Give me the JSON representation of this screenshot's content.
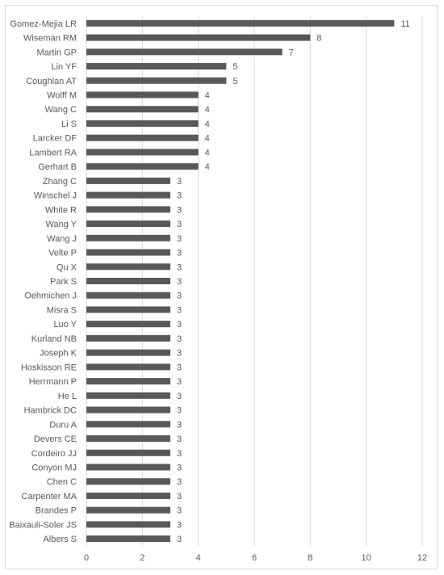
{
  "chart_data": {
    "type": "bar",
    "orientation": "horizontal",
    "title": "",
    "xlabel": "",
    "ylabel": "",
    "categories": [
      "Gomez-Mejia LR",
      "Wiseman RM",
      "Martin GP",
      "Lin YF",
      "Coughlan AT",
      "Wolff M",
      "Wang C",
      "Li S",
      "Larcker DF",
      "Lambert RA",
      "Gerhart B",
      "Zhang C",
      "Winschel J",
      "White R",
      "Wang Y",
      "Wang J",
      "Velte P",
      "Qu X",
      "Park S",
      "Oehmichen J",
      "Misra S",
      "Luo Y",
      "Kurland NB",
      "Joseph K",
      "Hoskisson RE",
      "Herrmann P",
      "He L",
      "Hambrick DC",
      "Duru A",
      "Devers CE",
      "Cordeiro JJ",
      "Conyon MJ",
      "Chen C",
      "Carpenter MA",
      "Brandes P",
      "Baixauli-Soler JS",
      "Albers S"
    ],
    "values": [
      11,
      8,
      7,
      5,
      5,
      4,
      4,
      4,
      4,
      4,
      4,
      3,
      3,
      3,
      3,
      3,
      3,
      3,
      3,
      3,
      3,
      3,
      3,
      3,
      3,
      3,
      3,
      3,
      3,
      3,
      3,
      3,
      3,
      3,
      3,
      3,
      3
    ],
    "xlim": [
      0,
      12
    ],
    "xticks": [
      0,
      2,
      4,
      6,
      8,
      10,
      12
    ],
    "grid": true,
    "bar_color": "#595959",
    "grid_color": "#d9d9d9",
    "data_labels": true
  }
}
